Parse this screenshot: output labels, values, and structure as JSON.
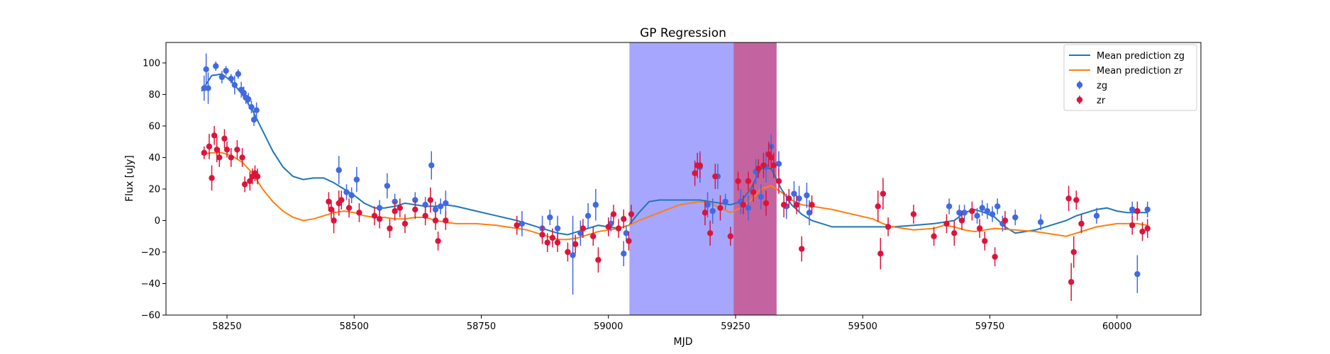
{
  "chart_data": {
    "type": "scatter",
    "title": "GP Regression",
    "xlabel": "MJD",
    "ylabel": "Flux [uJy]",
    "xlim": [
      58130,
      60165
    ],
    "ylim": [
      -60,
      113
    ],
    "x_ticks": [
      58250,
      58500,
      58750,
      59000,
      59250,
      59500,
      59750,
      60000
    ],
    "y_ticks": [
      -60,
      -40,
      -20,
      0,
      20,
      40,
      60,
      80,
      100
    ],
    "x_tick_labels": [
      "58250",
      "58500",
      "58750",
      "59000",
      "59250",
      "59500",
      "59750",
      "60000"
    ],
    "y_tick_labels": [
      "−60",
      "−40",
      "−20",
      "0",
      "20",
      "40",
      "60",
      "80",
      "100"
    ],
    "grid": false,
    "legend_position": "top-right",
    "shaded_regions": [
      {
        "x0": 59042,
        "x1": 59247,
        "color": "#a6a6ff"
      },
      {
        "x0": 59247,
        "x1": 59330,
        "color": "#c364a0"
      }
    ],
    "lines": [
      {
        "name": "Mean prediction zg",
        "color": "#1f77b4",
        "x": [
          58200,
          58220,
          58240,
          58260,
          58280,
          58300,
          58320,
          58340,
          58360,
          58380,
          58400,
          58420,
          58440,
          58460,
          58480,
          58500,
          58520,
          58540,
          58560,
          58580,
          58600,
          58620,
          58640,
          58660,
          58680,
          58700,
          58740,
          58780,
          58820,
          58840,
          58860,
          58880,
          58900,
          58920,
          58940,
          58960,
          58980,
          59000,
          59020,
          59040,
          59060,
          59080,
          59100,
          59140,
          59180,
          59200,
          59220,
          59240,
          59260,
          59280,
          59300,
          59320,
          59340,
          59360,
          59380,
          59400,
          59420,
          59440,
          59460,
          59500,
          59560,
          59600,
          59640,
          59660,
          59680,
          59700,
          59720,
          59740,
          59760,
          59780,
          59800,
          59840,
          59880,
          59900,
          59920,
          59940,
          59960,
          59980,
          60000,
          60020,
          60040,
          60060
        ],
        "y": [
          82,
          92,
          93,
          88,
          80,
          70,
          57,
          44,
          34,
          28,
          26,
          27,
          27,
          24,
          20,
          16,
          11,
          8,
          8,
          9,
          11,
          10,
          9,
          9,
          10,
          9,
          6,
          3,
          0,
          -2,
          -4,
          -6,
          -8,
          -9,
          -7,
          -5,
          -3,
          -4,
          -5,
          -3,
          5,
          12,
          13,
          13,
          13,
          12,
          11,
          10,
          12,
          20,
          33,
          33,
          20,
          10,
          4,
          0,
          -2,
          -4,
          -4,
          -4,
          -4,
          -3,
          -2,
          -1,
          0,
          5,
          7,
          5,
          2,
          -4,
          -8,
          -6,
          -2,
          0,
          3,
          5,
          7,
          8,
          6,
          5,
          5,
          5
        ]
      },
      {
        "name": "Mean prediction zr",
        "color": "#ff7f0e",
        "x": [
          58200,
          58220,
          58240,
          58260,
          58280,
          58300,
          58320,
          58340,
          58360,
          58380,
          58400,
          58420,
          58440,
          58460,
          58480,
          58500,
          58520,
          58540,
          58560,
          58580,
          58600,
          58620,
          58640,
          58660,
          58680,
          58700,
          58740,
          58780,
          58820,
          58840,
          58860,
          58880,
          58900,
          58920,
          58940,
          58960,
          58980,
          59000,
          59020,
          59040,
          59060,
          59100,
          59140,
          59180,
          59200,
          59220,
          59240,
          59260,
          59280,
          59300,
          59320,
          59340,
          59360,
          59380,
          59400,
          59440,
          59480,
          59520,
          59540,
          59560,
          59600,
          59640,
          59660,
          59680,
          59700,
          59720,
          59740,
          59760,
          59800,
          59840,
          59880,
          59900,
          59920,
          59960,
          60000,
          60020,
          60040,
          60060
        ],
        "y": [
          42,
          43,
          43,
          41,
          37,
          30,
          20,
          12,
          6,
          2,
          0,
          1,
          3,
          5,
          6,
          5,
          3,
          2,
          2,
          1,
          1,
          2,
          2,
          0,
          -1,
          -2,
          -2,
          -3,
          -5,
          -6,
          -8,
          -10,
          -12,
          -12,
          -11,
          -9,
          -7,
          -6,
          -5,
          -3,
          0,
          5,
          10,
          12,
          11,
          8,
          5,
          8,
          13,
          20,
          22,
          18,
          13,
          10,
          9,
          7,
          4,
          1,
          -2,
          -4,
          -6,
          -5,
          -3,
          -4,
          -6,
          -7,
          -6,
          -5,
          -6,
          -7,
          -9,
          -10,
          -8,
          -4,
          -2,
          -2,
          -2,
          -3
        ]
      }
    ],
    "series": [
      {
        "name": "zg",
        "color": "#4169e1",
        "x": [
          58205,
          58209,
          58213,
          58228,
          58240,
          58248,
          58258,
          58265,
          58272,
          58278,
          58283,
          58287,
          58292,
          58298,
          58303,
          58308,
          58470,
          58485,
          58495,
          58505,
          58550,
          58565,
          58580,
          58620,
          58640,
          58652,
          58660,
          58670,
          58680,
          58830,
          58870,
          58885,
          58900,
          58930,
          58945,
          58960,
          58975,
          59005,
          59030,
          59035,
          59180,
          59195,
          59205,
          59215,
          59230,
          59260,
          59275,
          59290,
          59300,
          59310,
          59320,
          59335,
          59350,
          59365,
          59375,
          59390,
          59395,
          59670,
          59690,
          59700,
          59725,
          59735,
          59745,
          59755,
          59765,
          59775,
          59800,
          59850,
          59930,
          59960,
          60030,
          60040,
          60060
        ],
        "y": [
          84,
          96,
          84,
          98,
          91,
          95,
          90,
          86,
          93,
          83,
          81,
          78,
          77,
          72,
          64,
          70,
          32,
          18,
          16,
          26,
          8,
          22,
          12,
          13,
          10,
          35,
          7,
          9,
          11,
          -2,
          -5,
          2,
          -5,
          -22,
          -8,
          3,
          10,
          -2,
          -21,
          -8,
          34,
          10,
          6,
          28,
          12,
          12,
          8,
          31,
          15,
          34,
          47,
          36,
          9,
          17,
          14,
          16,
          5,
          9,
          5,
          5,
          3,
          8,
          6,
          4,
          9,
          -2,
          2,
          -1,
          -2,
          3,
          7,
          -34,
          7
        ],
        "yerr": [
          8,
          10,
          10,
          3,
          4,
          3,
          3,
          6,
          3,
          5,
          4,
          4,
          4,
          4,
          4,
          5,
          9,
          5,
          5,
          8,
          5,
          8,
          5,
          5,
          5,
          9,
          5,
          5,
          8,
          8,
          8,
          5,
          8,
          25,
          8,
          8,
          10,
          5,
          8,
          5,
          10,
          8,
          8,
          8,
          5,
          8,
          8,
          8,
          8,
          10,
          8,
          8,
          8,
          8,
          8,
          8,
          8,
          5,
          5,
          5,
          5,
          5,
          5,
          5,
          5,
          5,
          5,
          5,
          5,
          5,
          5,
          12,
          5
        ]
      },
      {
        "name": "zr",
        "color": "#dc143c",
        "x": [
          58205,
          58215,
          58220,
          58225,
          58230,
          58235,
          58245,
          58250,
          58258,
          58270,
          58280,
          58285,
          58295,
          58300,
          58305,
          58310,
          58450,
          58455,
          58460,
          58470,
          58475,
          58490,
          58510,
          58540,
          58550,
          58570,
          58580,
          58590,
          58600,
          58620,
          58640,
          58650,
          58660,
          58665,
          58680,
          58820,
          58870,
          58880,
          58890,
          58900,
          58920,
          58935,
          58950,
          58970,
          58980,
          59000,
          59010,
          59020,
          59030,
          59040,
          59045,
          59170,
          59175,
          59180,
          59190,
          59200,
          59210,
          59220,
          59240,
          59255,
          59265,
          59275,
          59285,
          59295,
          59305,
          59310,
          59315,
          59320,
          59325,
          59335,
          59345,
          59355,
          59370,
          59380,
          59400,
          59530,
          59535,
          59540,
          59550,
          59600,
          59640,
          59665,
          59680,
          59695,
          59715,
          59730,
          59740,
          59760,
          59780,
          59905,
          59910,
          59915,
          59920,
          59930,
          60030,
          60040,
          60050,
          60060
        ],
        "y": [
          43,
          47,
          27,
          54,
          45,
          40,
          52,
          45,
          40,
          45,
          40,
          23,
          25,
          28,
          30,
          28,
          12,
          7,
          0,
          11,
          13,
          8,
          5,
          3,
          1,
          -5,
          6,
          8,
          -2,
          7,
          3,
          13,
          0,
          -13,
          0,
          -3,
          -9,
          -14,
          -11,
          -14,
          -20,
          -15,
          -5,
          -10,
          -25,
          -4,
          4,
          -5,
          1,
          -13,
          4,
          30,
          35,
          35,
          5,
          -8,
          28,
          8,
          -10,
          25,
          10,
          25,
          18,
          33,
          35,
          11,
          42,
          40,
          35,
          25,
          10,
          14,
          10,
          -18,
          10,
          9,
          -21,
          17,
          -4,
          4,
          -10,
          -2,
          -8,
          0,
          6,
          -5,
          -13,
          -23,
          0,
          14,
          -39,
          -20,
          13,
          -2,
          -3,
          6,
          -7,
          -5
        ],
        "yerr": [
          4,
          8,
          8,
          6,
          8,
          6,
          6,
          5,
          6,
          6,
          6,
          5,
          6,
          5,
          5,
          5,
          6,
          6,
          8,
          8,
          6,
          6,
          6,
          6,
          6,
          6,
          6,
          6,
          6,
          6,
          6,
          8,
          6,
          6,
          6,
          6,
          6,
          6,
          6,
          6,
          6,
          6,
          6,
          6,
          8,
          6,
          6,
          6,
          6,
          6,
          6,
          8,
          8,
          8,
          8,
          8,
          8,
          8,
          6,
          6,
          6,
          6,
          6,
          6,
          8,
          8,
          8,
          8,
          8,
          8,
          8,
          6,
          6,
          8,
          6,
          10,
          10,
          10,
          6,
          6,
          6,
          6,
          8,
          6,
          6,
          6,
          6,
          6,
          6,
          8,
          12,
          10,
          6,
          6,
          6,
          6,
          6,
          6
        ]
      }
    ]
  }
}
